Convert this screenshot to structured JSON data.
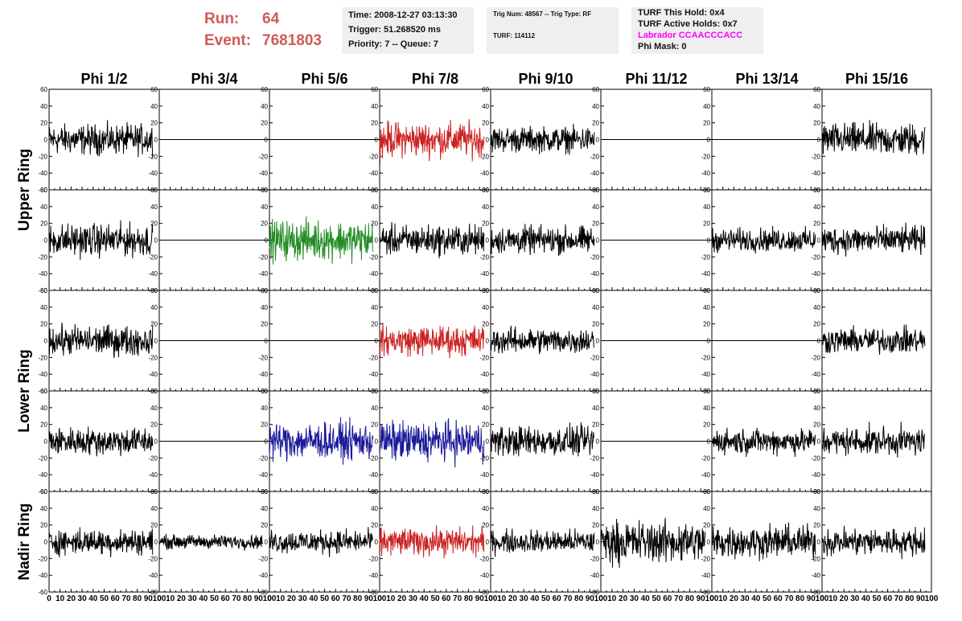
{
  "header": {
    "run_label": "Run:",
    "run_value": "64",
    "event_label": "Event:",
    "event_value": "7681803",
    "time": "Time: 2008-12-27 03:13:30",
    "trigger": "Trigger: 51.268520 ms",
    "priority": "Priority: 7 -- Queue: 7",
    "trig_num": "Trig Num: 48567 -- Trig Type: RF",
    "turf": "TURF: 114112",
    "turf_this_hold": "TURF This Hold: 0x4",
    "turf_active_holds": "TURF Active Holds: 0x7",
    "labrador": "Labrador CCAACCCACC",
    "phi_mask": "Phi Mask: 0"
  },
  "colors": {
    "run_text": "#d05a55",
    "labrador_text": "#ff00ff",
    "black_trace": "#000000",
    "red_trace": "#cc2222",
    "green_trace": "#228b22",
    "blue_trace": "#1a1a9a"
  },
  "chart_data": {
    "type": "line",
    "column_headers": [
      "Phi 1/2",
      "Phi 3/4",
      "Phi 5/6",
      "Phi 7/8",
      "Phi 9/10",
      "Phi 11/12",
      "Phi 13/14",
      "Phi 15/16"
    ],
    "row_labels": [
      "Upper Ring",
      "Lower Ring",
      "Nadir Ring"
    ],
    "panel_rows": 5,
    "panel_cols": 8,
    "xlim": [
      0,
      100
    ],
    "ylim": [
      -60,
      60
    ],
    "x_tick_labels": [
      "0",
      "10",
      "20",
      "30",
      "40",
      "50",
      "60",
      "70",
      "80",
      "90",
      "100"
    ],
    "y_tick_labels": [
      "60",
      "40",
      "20",
      "0",
      "-20",
      "-40",
      "-60"
    ],
    "grid": false,
    "waveform_samples": 260,
    "waveform_x_range": [
      0,
      94
    ],
    "panels": [
      [
        {
          "color": "black",
          "amp": 26
        },
        {
          "color": "flat",
          "amp": 0
        },
        {
          "color": "flat",
          "amp": 0
        },
        {
          "color": "red",
          "amp": 30
        },
        {
          "color": "black",
          "amp": 22
        },
        {
          "color": "flat",
          "amp": 0
        },
        {
          "color": "flat",
          "amp": 0
        },
        {
          "color": "black",
          "amp": 28
        }
      ],
      [
        {
          "color": "black",
          "amp": 28
        },
        {
          "color": "flat",
          "amp": 0
        },
        {
          "color": "green",
          "amp": 34
        },
        {
          "color": "black",
          "amp": 26
        },
        {
          "color": "black",
          "amp": 24
        },
        {
          "color": "flat",
          "amp": 0
        },
        {
          "color": "black",
          "amp": 20
        },
        {
          "color": "black",
          "amp": 24
        }
      ],
      [
        {
          "color": "black",
          "amp": 26
        },
        {
          "color": "flat",
          "amp": 0
        },
        {
          "color": "flat",
          "amp": 0
        },
        {
          "color": "red",
          "amp": 26
        },
        {
          "color": "black",
          "amp": 22
        },
        {
          "color": "flat",
          "amp": 0
        },
        {
          "color": "flat",
          "amp": 0
        },
        {
          "color": "black",
          "amp": 22
        }
      ],
      [
        {
          "color": "black",
          "amp": 24
        },
        {
          "color": "flat",
          "amp": 0
        },
        {
          "color": "blue",
          "amp": 32
        },
        {
          "color": "blue",
          "amp": 34
        },
        {
          "color": "black",
          "amp": 26
        },
        {
          "color": "flat",
          "amp": 0
        },
        {
          "color": "black",
          "amp": 22
        },
        {
          "color": "black",
          "amp": 24
        }
      ],
      [
        {
          "color": "black",
          "amp": 22
        },
        {
          "color": "black",
          "amp": 12
        },
        {
          "color": "black",
          "amp": 20
        },
        {
          "color": "red",
          "amp": 24
        },
        {
          "color": "black",
          "amp": 20
        },
        {
          "color": "black",
          "amp": 36
        },
        {
          "color": "black",
          "amp": 28
        },
        {
          "color": "black",
          "amp": 24
        }
      ]
    ]
  }
}
